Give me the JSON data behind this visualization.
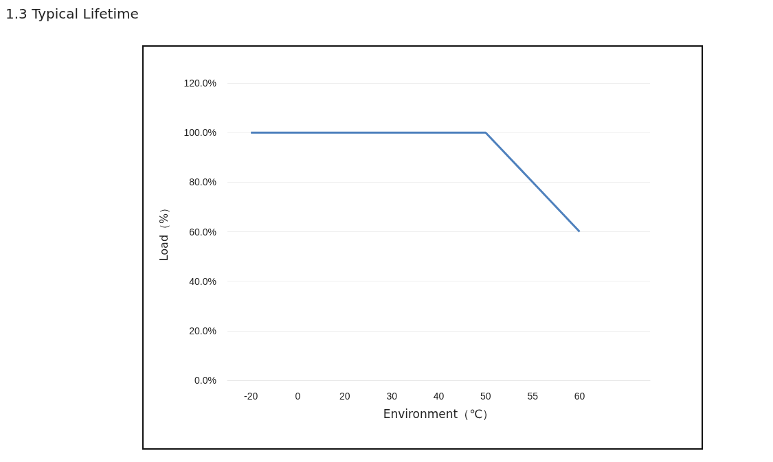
{
  "chart_data": {
    "type": "line",
    "title": "1.3 Typical Lifetime",
    "xlabel": "Environment（℃）",
    "ylabel": "Load（%）",
    "categories": [
      "-20",
      "0",
      "20",
      "30",
      "40",
      "50",
      "55",
      "60",
      null
    ],
    "series": [
      {
        "color": "#4f81bd",
        "values": [
          100,
          100,
          100,
          100,
          100,
          100,
          80,
          60,
          null
        ]
      }
    ],
    "ylim": [
      0,
      120
    ],
    "yticks": [
      {
        "value": 0,
        "label": "0.0%"
      },
      {
        "value": 20,
        "label": "20.0%"
      },
      {
        "value": 40,
        "label": "40.0%"
      },
      {
        "value": 60,
        "label": "60.0%"
      },
      {
        "value": 80,
        "label": "80.0%"
      },
      {
        "value": 100,
        "label": "100.0%"
      },
      {
        "value": 120,
        "label": "120.0%"
      }
    ],
    "grid": "y",
    "marker": "none",
    "line_style": "solid"
  }
}
